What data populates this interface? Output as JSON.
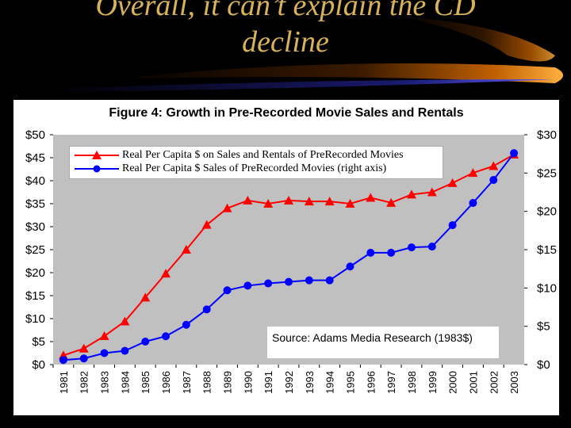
{
  "slide": {
    "title_line1": "Overall, it can’t explain the CD",
    "title_line2": "decline"
  },
  "figure": {
    "title": "Figure 4: Growth in Pre-Recorded Movie Sales and Rentals",
    "source": "Source: Adams Media Research (1983$)"
  },
  "colors": {
    "plot_bg": "#c0c0c0",
    "sales_rentals": "#ff0000",
    "sales_only": "#0000ff",
    "title_text": "#d8b25a"
  },
  "chart_data": {
    "type": "line",
    "title": "Figure 4: Growth in Pre-Recorded Movie Sales and Rentals",
    "x": [
      "1981",
      "1982",
      "1983",
      "1984",
      "1985",
      "1986",
      "1987",
      "1988",
      "1989",
      "1990",
      "1991",
      "1992",
      "1993",
      "1994",
      "1995",
      "1996",
      "1997",
      "1998",
      "1999",
      "2000",
      "2001",
      "2002",
      "2003"
    ],
    "left_axis": {
      "ylim": [
        0,
        50
      ],
      "ticks": [
        "$0",
        "$5",
        "$10",
        "$15",
        "$20",
        "$25",
        "$30",
        "$35",
        "$40",
        "$45",
        "$50"
      ]
    },
    "right_axis": {
      "ylim": [
        0,
        30
      ],
      "ticks": [
        "$0",
        "$5",
        "$10",
        "$15",
        "$20",
        "$25",
        "$30"
      ]
    },
    "series": [
      {
        "name": "Real Per Capita $ on Sales and Rentals of PreRecorded Movies",
        "axis": "left",
        "marker": "triangle",
        "color": "#ff0000",
        "values": [
          2.0,
          3.5,
          6.2,
          9.4,
          14.6,
          19.8,
          25.0,
          30.4,
          34.0,
          35.7,
          35.0,
          35.7,
          35.5,
          35.5,
          35.0,
          36.3,
          35.2,
          37.0,
          37.5,
          39.5,
          41.7,
          43.2,
          45.7
        ]
      },
      {
        "name": "Real Per Capita $ Sales of PreRecorded Movies (right axis)",
        "axis": "right",
        "marker": "circle",
        "color": "#0000ff",
        "values": [
          0.6,
          0.8,
          1.5,
          1.8,
          3.0,
          3.7,
          5.2,
          7.2,
          9.7,
          10.3,
          10.6,
          10.8,
          11.0,
          11.0,
          12.8,
          14.6,
          14.6,
          15.3,
          15.4,
          18.2,
          21.1,
          24.1,
          27.6
        ]
      }
    ],
    "grid": false,
    "legend_position": "top-left"
  }
}
